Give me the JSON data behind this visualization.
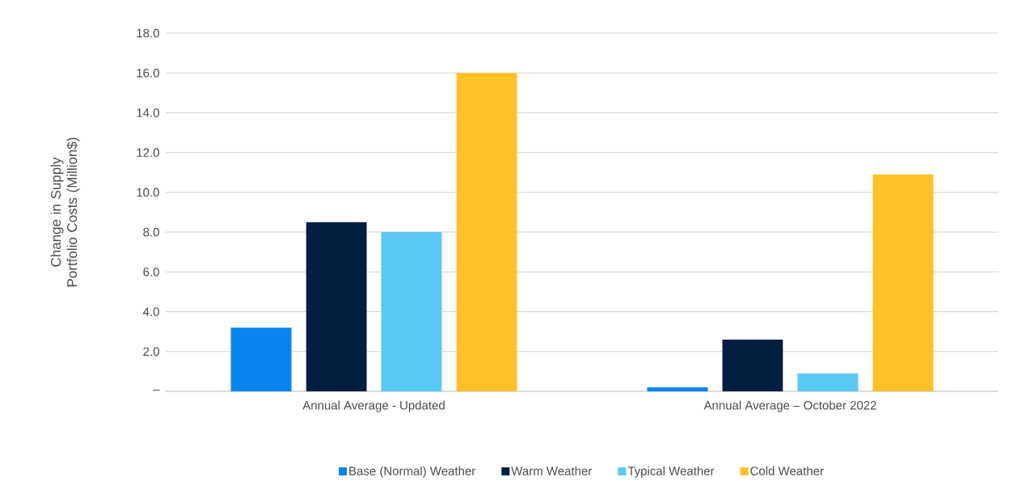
{
  "chart_data": {
    "type": "bar",
    "ylabel": "Change in Supply Portfolio Costs (Million$)",
    "categories": [
      "Annual Average - Updated",
      "Annual Average – October 2022"
    ],
    "series": [
      {
        "name": "Base (Normal) Weather",
        "color": "#0784ef",
        "values": [
          3.2,
          0.2
        ]
      },
      {
        "name": "Warm Weather",
        "color": "#031e41",
        "values": [
          8.5,
          2.6
        ]
      },
      {
        "name": "Typical Weather",
        "color": "#5bc9f5",
        "values": [
          8.0,
          0.9
        ]
      },
      {
        "name": "Cold Weather",
        "color": "#fec127",
        "values": [
          16.0,
          10.9
        ]
      }
    ],
    "ylim": [
      0,
      18
    ],
    "yticks": [
      {
        "value": 0,
        "label": "–"
      },
      {
        "value": 2,
        "label": "2.0"
      },
      {
        "value": 4,
        "label": "4.0"
      },
      {
        "value": 6,
        "label": "6.0"
      },
      {
        "value": 8,
        "label": "8.0"
      },
      {
        "value": 10,
        "label": "10.0"
      },
      {
        "value": 12,
        "label": "12.0"
      },
      {
        "value": 14,
        "label": "14.0"
      },
      {
        "value": 16,
        "label": "16.0"
      },
      {
        "value": 18,
        "label": "18.0"
      }
    ],
    "grid": "y",
    "legend": "bottom"
  }
}
